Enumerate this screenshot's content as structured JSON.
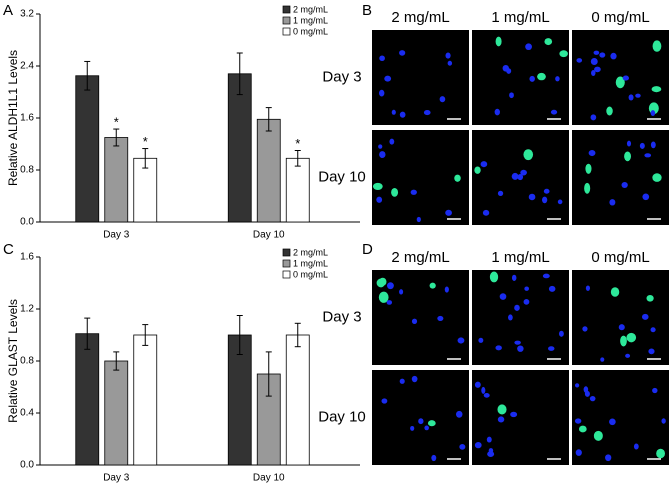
{
  "chart_data": [
    {
      "type": "bar",
      "y_label": "Relative ALDH1L1 Levels",
      "categories": [
        "Day 3",
        "Day 10"
      ],
      "series": [
        {
          "name": "2 mg/mL",
          "color": "#333333",
          "values": [
            2.25,
            2.28
          ],
          "errors": [
            0.22,
            0.32
          ],
          "significance": [
            null,
            null
          ]
        },
        {
          "name": "1 mg/mL",
          "color": "#999999",
          "values": [
            1.3,
            1.58
          ],
          "errors": [
            0.13,
            0.18
          ],
          "significance": [
            "*",
            null
          ]
        },
        {
          "name": "0 mg/mL",
          "color": "#ffffff",
          "values": [
            0.98,
            0.98
          ],
          "errors": [
            0.15,
            0.12
          ],
          "significance": [
            "*",
            "*"
          ]
        }
      ],
      "ylim": [
        0,
        3.2
      ],
      "yticks": [
        {
          "value": 0,
          "label": "0.0"
        },
        0.8,
        1.6,
        2.4,
        3.2
      ]
    },
    {
      "type": "bar",
      "y_label": "Relative GLAST Levels",
      "categories": [
        "Day 3",
        "Day 10"
      ],
      "series": [
        {
          "name": "2 mg/mL",
          "color": "#333333",
          "values": [
            1.01,
            1.0
          ],
          "errors": [
            0.12,
            0.15
          ]
        },
        {
          "name": "1 mg/mL",
          "color": "#999999",
          "values": [
            0.8,
            0.7
          ],
          "errors": [
            0.07,
            0.17
          ]
        },
        {
          "name": "0 mg/mL",
          "color": "#ffffff",
          "values": [
            1.0,
            1.0
          ],
          "errors": [
            0.08,
            0.09
          ]
        }
      ],
      "ylim": [
        0,
        1.6
      ],
      "yticks": [
        {
          "value": 0,
          "label": "0.0"
        },
        0.4,
        0.8,
        1.2,
        1.6
      ]
    }
  ],
  "panel_labels": [
    "A",
    "B",
    "C",
    "D"
  ],
  "image_panels": [
    {
      "columns": [
        "2 mg/mL",
        "1 mg/mL",
        "0 mg/mL"
      ],
      "rows": [
        "Day 3",
        "Day 10"
      ]
    },
    {
      "columns": [
        "2 mg/mL",
        "1 mg/mL",
        "0 mg/mL"
      ],
      "rows": [
        "Day 3",
        "Day 10"
      ]
    }
  ]
}
